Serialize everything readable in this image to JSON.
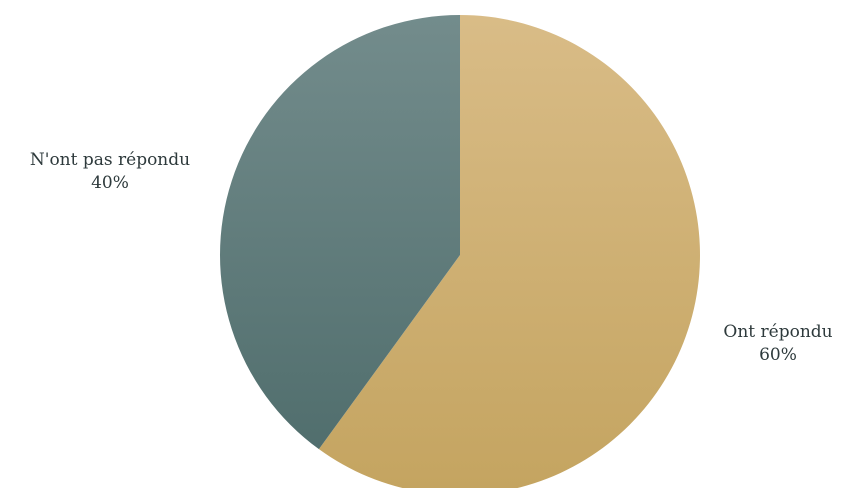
{
  "chart_data": {
    "type": "pie",
    "title": "",
    "start_angle_deg": 0,
    "direction": "clockwise",
    "slices": [
      {
        "label": "Ont répondu",
        "percent_label": "60%",
        "value": 60,
        "color_top": "#d9bc87",
        "color_bottom": "#c4a460"
      },
      {
        "label": "N'ont pas répondu",
        "percent_label": "40%",
        "value": 40,
        "color_top": "#738c8c",
        "color_bottom": "#4d6b6a"
      }
    ]
  }
}
